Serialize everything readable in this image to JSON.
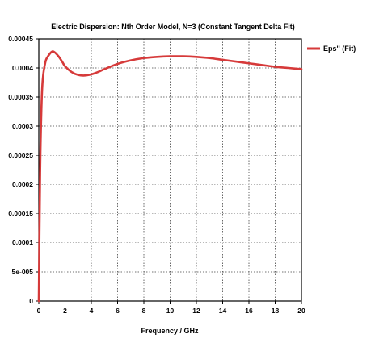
{
  "chart_data": {
    "type": "line",
    "title": "Electric Dispersion: Nth Order Model, N=3 (Constant Tangent Delta Fit)",
    "xlabel": "Frequency / GHz",
    "ylabel": "",
    "xlim": [
      0,
      20
    ],
    "ylim": [
      0,
      0.00045
    ],
    "x_ticks": [
      "0",
      "2",
      "4",
      "6",
      "8",
      "10",
      "12",
      "14",
      "16",
      "18",
      "20"
    ],
    "y_ticks": [
      "0",
      "5e-005",
      "0.0001",
      "0.00015",
      "0.0002",
      "0.00025",
      "0.0003",
      "0.00035",
      "0.0004",
      "0.00045"
    ],
    "grid": true,
    "legend_position": "top-right",
    "series": [
      {
        "name": "Eps'' (Fit)",
        "color": "#d63a3a",
        "x": [
          0,
          0.1,
          0.2,
          0.3,
          0.5,
          0.7,
          1.0,
          1.2,
          1.5,
          1.8,
          2.0,
          2.5,
          3.0,
          3.5,
          4.0,
          4.5,
          5.0,
          6.0,
          7.0,
          8.0,
          9.0,
          10.0,
          11.0,
          12.0,
          13.0,
          14.0,
          15.0,
          16.0,
          17.0,
          18.0,
          19.0,
          20.0
        ],
        "y": [
          0,
          0.00022,
          0.00033,
          0.00038,
          0.00041,
          0.00042,
          0.000428,
          0.000427,
          0.00042,
          0.00041,
          0.000403,
          0.000393,
          0.000388,
          0.000387,
          0.000389,
          0.000393,
          0.000398,
          0.000407,
          0.000413,
          0.000417,
          0.000419,
          0.00042,
          0.00042,
          0.000419,
          0.000417,
          0.000414,
          0.000411,
          0.000408,
          0.000405,
          0.000402,
          0.0004,
          0.000398
        ]
      }
    ]
  }
}
